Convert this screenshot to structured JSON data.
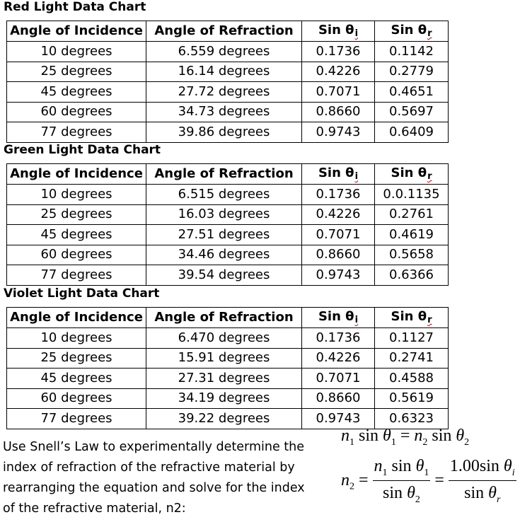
{
  "tables": [
    {
      "title": "Red Light Data Chart",
      "headers": {
        "incidence": "Angle of Incidence",
        "refraction": "Angle of Refraction",
        "sin_prefix": "Sin θ",
        "sin_i_sub": "i",
        "sin_r_sub": "r"
      },
      "rows": [
        {
          "incidence": "10 degrees",
          "refraction": "6.559 degrees",
          "sin_i": "0.1736",
          "sin_r": "0.1142"
        },
        {
          "incidence": "25 degrees",
          "refraction": "16.14 degrees",
          "sin_i": "0.4226",
          "sin_r": "0.2779"
        },
        {
          "incidence": "45 degrees",
          "refraction": "27.72 degrees",
          "sin_i": "0.7071",
          "sin_r": "0.4651"
        },
        {
          "incidence": "60 degrees",
          "refraction": "34.73 degrees",
          "sin_i": "0.8660",
          "sin_r": "0.5697"
        },
        {
          "incidence": "77 degrees",
          "refraction": "39.86 degrees",
          "sin_i": "0.9743",
          "sin_r": "0.6409"
        }
      ]
    },
    {
      "title": "Green Light Data Chart",
      "headers": {
        "incidence": "Angle of Incidence",
        "refraction": "Angle of Refraction",
        "sin_prefix": "Sin θ",
        "sin_i_sub": "i",
        "sin_r_sub": "r"
      },
      "rows": [
        {
          "incidence": "10 degrees",
          "refraction": "6.515 degrees",
          "sin_i": "0.1736",
          "sin_r": "0.0.1135"
        },
        {
          "incidence": "25 degrees",
          "refraction": "16.03 degrees",
          "sin_i": "0.4226",
          "sin_r": "0.2761"
        },
        {
          "incidence": "45 degrees",
          "refraction": "27.51 degrees",
          "sin_i": "0.7071",
          "sin_r": "0.4619"
        },
        {
          "incidence": "60 degrees",
          "refraction": "34.46 degrees",
          "sin_i": "0.8660",
          "sin_r": "0.5658"
        },
        {
          "incidence": "77 degrees",
          "refraction": "39.54 degrees",
          "sin_i": "0.9743",
          "sin_r": "0.6366"
        }
      ]
    },
    {
      "title": "Violet Light Data Chart",
      "headers": {
        "incidence": "Angle of Incidence",
        "refraction": "Angle of Refraction",
        "sin_prefix": "Sin θ",
        "sin_i_sub": "i",
        "sin_r_sub": "r"
      },
      "rows": [
        {
          "incidence": "10 degrees",
          "refraction": "6.470 degrees",
          "sin_i": "0.1736",
          "sin_r": "0.1127"
        },
        {
          "incidence": "25 degrees",
          "refraction": "15.91 degrees",
          "sin_i": "0.4226",
          "sin_r": "0.2741"
        },
        {
          "incidence": "45 degrees",
          "refraction": "27.31 degrees",
          "sin_i": "0.7071",
          "sin_r": "0.4588"
        },
        {
          "incidence": "60 degrees",
          "refraction": "34.19 degrees",
          "sin_i": "0.8660",
          "sin_r": "0.5619"
        },
        {
          "incidence": "77 degrees",
          "refraction": "39.22 degrees",
          "sin_i": "0.9743",
          "sin_r": "0.6323"
        }
      ]
    }
  ],
  "instructions": [
    "Use Snell’s Law to experimentally determine the",
    "index of refraction of the refractive material by",
    "rearranging the equation and solve for the index",
    "of the refractive material, n2:"
  ],
  "equations": {
    "snell": {
      "n": "n",
      "sub1": "1",
      "sub2": "2",
      "sin": "sin",
      "theta": "θ",
      "equals": "="
    },
    "solved": {
      "lhs_n": "n",
      "lhs_sub": "2",
      "equals": "=",
      "coef": "1.00",
      "sub_i": "i",
      "sub_r": "r"
    }
  },
  "colors": {
    "underline": "#c00000",
    "text": "#000000",
    "background": "#ffffff"
  }
}
